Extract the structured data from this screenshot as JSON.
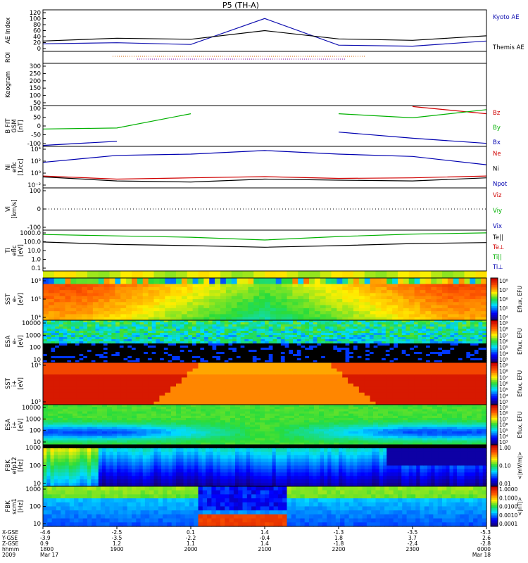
{
  "title": "P5 (TH-A)",
  "panels": [
    {
      "id": "ae",
      "ylabel": [
        "AE Index"
      ],
      "ticks": [
        "120",
        "100",
        "80",
        "60",
        "40",
        "20",
        "0"
      ],
      "legend": [
        {
          "text": "Kyoto AE",
          "color": "#1010b0"
        },
        {
          "text": "Themis AE",
          "color": "#000000"
        }
      ]
    },
    {
      "id": "roi",
      "ylabel": [
        "ROI"
      ],
      "ticks": [],
      "legend": []
    },
    {
      "id": "keogram",
      "ylabel": [
        "Keogram"
      ],
      "ticks": [
        "300",
        "250",
        "200",
        "150",
        "100",
        "50"
      ],
      "legend": []
    },
    {
      "id": "bfit",
      "ylabel": [
        "B FIT",
        "GSM",
        "[nT]"
      ],
      "ticks": [
        "100",
        "50",
        "0",
        "-50",
        "-100"
      ],
      "legend": [
        {
          "text": "Bz",
          "color": "#d00000"
        },
        {
          "text": "By",
          "color": "#00b000"
        },
        {
          "text": "Bx",
          "color": "#0000b0"
        }
      ]
    },
    {
      "id": "ni",
      "ylabel": [
        "Ni",
        "eflc",
        "[1/cc]"
      ],
      "ticks": [
        "10⁴",
        "10²",
        "10⁰",
        "10⁻²"
      ],
      "legend": [
        {
          "text": "Ne",
          "color": "#d00000"
        },
        {
          "text": "Ni",
          "color": "#000000"
        },
        {
          "text": "Npot",
          "color": "#0000b0"
        }
      ]
    },
    {
      "id": "vi",
      "ylabel": [
        "Vi",
        "[km/s]"
      ],
      "ticks": [
        "100",
        "0",
        "-100"
      ],
      "legend": [
        {
          "text": "Viz",
          "color": "#d00000"
        },
        {
          "text": "Viy",
          "color": "#00b000"
        },
        {
          "text": "Vix",
          "color": "#0000b0"
        }
      ]
    },
    {
      "id": "ti",
      "ylabel": [
        "Ti",
        "eflc",
        "[eV]"
      ],
      "ticks": [
        "1000.0",
        "100.0",
        "10.0",
        "1.0",
        "0.1"
      ],
      "legend": [
        {
          "text": "Te||",
          "color": "#000000"
        },
        {
          "text": "Te⊥",
          "color": "#d00000"
        },
        {
          "text": "Ti||",
          "color": "#00b000"
        },
        {
          "text": "Ti⊥",
          "color": "#0000b0"
        }
      ]
    },
    {
      "id": "sst_e",
      "ylabel": [
        "SST",
        "e-",
        "[eV]"
      ],
      "ticks": [
        "10⁶",
        "10⁵",
        "10⁴"
      ],
      "legend": []
    },
    {
      "id": "esa_e",
      "ylabel": [
        "ESA",
        "e-",
        "[eV]"
      ],
      "ticks": [
        "10000",
        "1000",
        "100",
        "10"
      ],
      "legend": []
    },
    {
      "id": "sst_i",
      "ylabel": [
        "SST",
        "i+",
        "[eV]"
      ],
      "ticks": [
        "10⁶",
        "10⁵"
      ],
      "legend": []
    },
    {
      "id": "esa_i",
      "ylabel": [
        "ESA",
        "i+",
        "[eV]"
      ],
      "ticks": [
        "10000",
        "1000",
        "100",
        "10"
      ],
      "legend": []
    },
    {
      "id": "fbk1",
      "ylabel": [
        "FBK",
        "efp12",
        "[Hz]"
      ],
      "ticks": [
        "1000",
        "100",
        "10"
      ],
      "legend": []
    },
    {
      "id": "fbk2",
      "ylabel": [
        "FBK",
        "scm1",
        "[Hz]"
      ],
      "ticks": [
        "1000",
        "100",
        "10"
      ],
      "legend": []
    }
  ],
  "colorbars": [
    {
      "label": "Eflux, EFU",
      "ticks": [
        "10⁸",
        "10⁷",
        "10⁶",
        "10⁵",
        "10⁴"
      ]
    },
    {
      "label": "Eflux, EFU",
      "ticks": [
        "10⁹",
        "10⁸",
        "10⁷",
        "10⁶",
        "10⁵",
        "10⁴",
        "10³"
      ]
    },
    {
      "label": "Eflux, EFU",
      "ticks": [
        "10⁹",
        "10⁸",
        "10⁷",
        "10⁶",
        "10⁵",
        "10⁴",
        "10³"
      ]
    },
    {
      "label": "Eflux, EFU",
      "ticks": [
        "10⁹",
        "10⁸",
        "10⁷",
        "10⁶",
        "10⁵",
        "10⁴",
        "10³"
      ]
    },
    {
      "label": "<|mV/m|>",
      "ticks": [
        "1.00",
        "0.10",
        "0.01"
      ]
    },
    {
      "label": "<|nT|>",
      "ticks": [
        "1.0000",
        "0.1000",
        "0.0100",
        "0.0010",
        "0.0001"
      ]
    }
  ],
  "xaxis": {
    "row_labels": [
      "X-GSE",
      "Y-GSE",
      "Z-GSE",
      "hhmm",
      "2009"
    ],
    "columns": [
      [
        "-4.6",
        "-3.9",
        "0.9",
        "1800",
        "Mar 17"
      ],
      [
        "-2.5",
        "-3.5",
        "1.2",
        "1900",
        ""
      ],
      [
        "0.1",
        "-2.2",
        "1.1",
        "2000",
        ""
      ],
      [
        "1.4",
        "-0.4",
        "1.4",
        "2100",
        ""
      ],
      [
        "-1.3",
        "1.8",
        "-1.8",
        "2200",
        ""
      ],
      [
        "-3.5",
        "3.7",
        "-2.4",
        "2300",
        ""
      ],
      [
        "-5.3",
        "2.6",
        "-2.8",
        "0000",
        "Mar 18"
      ]
    ]
  },
  "chart_data": [
    {
      "type": "line",
      "panel": "AE Index",
      "ylim": [
        0,
        120
      ],
      "x": [
        "1800",
        "1900",
        "2000",
        "2100",
        "2200",
        "2300",
        "0000"
      ],
      "series": [
        {
          "name": "Kyoto AE",
          "values": [
            22,
            25,
            20,
            95,
            18,
            15,
            30
          ]
        },
        {
          "name": "Themis AE",
          "values": [
            30,
            38,
            35,
            60,
            36,
            32,
            45
          ]
        }
      ]
    },
    {
      "type": "line",
      "panel": "B FIT GSM [nT]",
      "ylim": [
        -100,
        100
      ],
      "x": [
        "1800",
        "1900",
        "2000",
        "2100",
        "2200",
        "2300",
        "0000"
      ],
      "series": [
        {
          "name": "Bz",
          "values": [
            null,
            null,
            null,
            null,
            null,
            95,
            60
          ]
        },
        {
          "name": "By",
          "values": [
            -15,
            -10,
            60,
            null,
            60,
            40,
            80
          ]
        },
        {
          "name": "Bx",
          "values": [
            -95,
            -75,
            null,
            null,
            -30,
            -60,
            -85
          ]
        }
      ]
    },
    {
      "type": "line",
      "panel": "Ni eflc [1/cc]",
      "ylog": true,
      "ylim": [
        0.01,
        100000
      ],
      "x": [
        "1800",
        "1900",
        "2000",
        "2100",
        "2200",
        "2300",
        "0000"
      ],
      "series": [
        {
          "name": "Ne",
          "values": [
            1,
            0.3,
            0.5,
            0.8,
            0.4,
            0.5,
            1
          ]
        },
        {
          "name": "Ni",
          "values": [
            0.7,
            0.15,
            0.1,
            0.3,
            0.2,
            0.15,
            0.5
          ]
        },
        {
          "name": "Npot",
          "values": [
            200,
            3000,
            5000,
            20000,
            5000,
            2000,
            80
          ]
        }
      ]
    },
    {
      "type": "line",
      "panel": "Ti eflc [eV]",
      "ylog": true,
      "ylim": [
        0.1,
        3000
      ],
      "x": [
        "1800",
        "1900",
        "2000",
        "2100",
        "2200",
        "2300",
        "0000"
      ],
      "series": [
        {
          "name": "Te||",
          "values": [
            150,
            80,
            60,
            40,
            60,
            100,
            130
          ]
        },
        {
          "name": "Ti||",
          "values": [
            1000,
            700,
            500,
            250,
            600,
            1100,
            1500
          ]
        }
      ]
    }
  ]
}
